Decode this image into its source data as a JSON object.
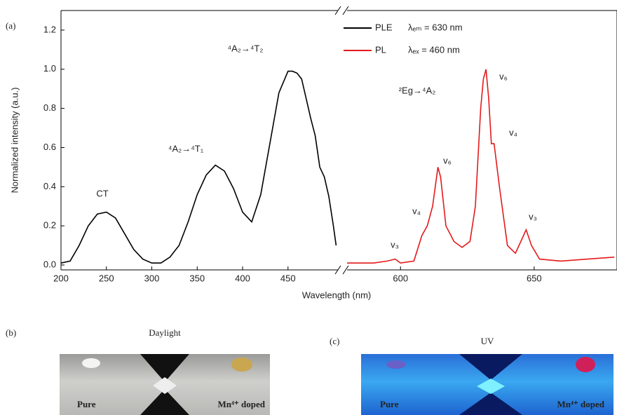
{
  "chart_data": [
    {
      "type": "line",
      "panel": "(a)",
      "xlabel": "Wavelength (nm)",
      "ylabel": "Normalized intensity (a.u.)",
      "xlim": [
        200,
        505
      ],
      "ylim": [
        -0.025,
        1.3
      ],
      "xticks": [
        200,
        250,
        300,
        350,
        400,
        450
      ],
      "yticks": [
        {
          "value": 0,
          "label": "0.0"
        },
        {
          "value": 0.2,
          "label": "0.2"
        },
        {
          "value": 0.4,
          "label": "0.4"
        },
        {
          "value": 0.6,
          "label": "0.6"
        },
        {
          "value": 0.8,
          "label": "0.8"
        },
        {
          "value": 1,
          "label": "1.0"
        },
        {
          "value": 1.2,
          "label": "1.2"
        }
      ],
      "x": [
        200,
        210,
        220,
        230,
        240,
        250,
        260,
        270,
        280,
        290,
        300,
        310,
        320,
        330,
        340,
        350,
        360,
        370,
        380,
        390,
        400,
        410,
        420,
        430,
        440,
        450,
        455,
        460,
        465,
        470,
        475,
        480,
        485,
        490,
        495,
        500,
        503
      ],
      "series": [
        {
          "name": "PLE",
          "note": "λₑₘ = 630 nm",
          "color": "#000000",
          "values": [
            0.01,
            0.02,
            0.1,
            0.2,
            0.26,
            0.27,
            0.24,
            0.16,
            0.08,
            0.03,
            0.01,
            0.01,
            0.04,
            0.1,
            0.22,
            0.36,
            0.46,
            0.51,
            0.48,
            0.39,
            0.27,
            0.22,
            0.36,
            0.62,
            0.88,
            0.99,
            0.99,
            0.98,
            0.95,
            0.85,
            0.75,
            0.66,
            0.5,
            0.45,
            0.35,
            0.2,
            0.1
          ]
        }
      ],
      "annotations": [
        "CT",
        "⁴A₂→⁴T₁",
        "⁴A₂→⁴T₂"
      ]
    },
    {
      "type": "line",
      "xlim": [
        580,
        681
      ],
      "ylim": [
        -0.025,
        1.3
      ],
      "xticks": [
        600,
        650
      ],
      "x": [
        580,
        590,
        595,
        598,
        600,
        605,
        608,
        610,
        612,
        614,
        615,
        617,
        620,
        623,
        626,
        628,
        630,
        631,
        632,
        633,
        634,
        635,
        637,
        640,
        643,
        645,
        647,
        649,
        652,
        660,
        670,
        680
      ],
      "series": [
        {
          "name": "PL",
          "note": "λₑₓ = 460 nm",
          "color": "#e31a1c",
          "values": [
            0.01,
            0.01,
            0.02,
            0.03,
            0.01,
            0.02,
            0.15,
            0.2,
            0.3,
            0.5,
            0.45,
            0.2,
            0.12,
            0.09,
            0.12,
            0.3,
            0.8,
            0.95,
            1.0,
            0.85,
            0.62,
            0.62,
            0.4,
            0.1,
            0.06,
            0.12,
            0.18,
            0.1,
            0.03,
            0.02,
            0.03,
            0.04
          ]
        }
      ],
      "annotations": [
        "²Eg→⁴A₂",
        "v₃",
        "v₄",
        "v₆",
        "v₆",
        "v₄",
        "v₃"
      ]
    }
  ],
  "photos": [
    {
      "panel": "(b)",
      "title": "Daylight",
      "left": "Pure",
      "right": "Mn⁴⁺ doped"
    },
    {
      "panel": "(c)",
      "title": "UV",
      "left": "Pure",
      "right": "Mn⁴⁺ doped"
    }
  ]
}
